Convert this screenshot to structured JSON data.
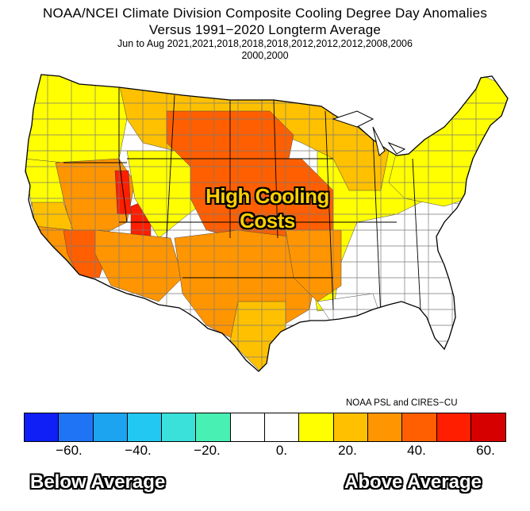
{
  "title": {
    "line1": "NOAA/NCEI Climate Division Composite Cooling Degree Day Anomalies",
    "line2": "Versus 1991−2020 Longterm Average",
    "line3": "Jun to Aug  2021,2021,2018,2018,2018,2012,2012,2012,2008,2006",
    "line4": "2000,2000"
  },
  "overlay": {
    "center_text": "High Cooling Costs"
  },
  "credit": "NOAA PSL and CIRES−CU",
  "legend": {
    "colors": [
      "#0f1ff5",
      "#1e74f5",
      "#1ca4f0",
      "#22c8f2",
      "#3ae0da",
      "#48f0b4",
      "#ffffff",
      "#ffffff",
      "#ffff00",
      "#ffc000",
      "#ff9500",
      "#ff5f00",
      "#ff1e00",
      "#d70000"
    ],
    "tick_labels": [
      "−60.",
      "−40.",
      "−20.",
      "0.",
      "20.",
      "40.",
      "60."
    ],
    "below_label": "Below Average",
    "above_label": "Above Average"
  },
  "map": {
    "regions": [
      {
        "name": "pacific-northwest-coast",
        "color": "#ffff00"
      },
      {
        "name": "northern-california",
        "color": "#ffff00"
      },
      {
        "name": "central-california",
        "color": "#ffc000"
      },
      {
        "name": "southern-california",
        "color": "#ff9500"
      },
      {
        "name": "southwest-desert",
        "color": "#ff5f00"
      },
      {
        "name": "great-basin",
        "color": "#ff9500"
      },
      {
        "name": "northern-rockies",
        "color": "#ffc000"
      },
      {
        "name": "utah-central",
        "color": "#ff1e00"
      },
      {
        "name": "colorado-west",
        "color": "#ffff00"
      },
      {
        "name": "new-mexico-arizona",
        "color": "#ff9500"
      },
      {
        "name": "northern-plains",
        "color": "#ff5f00"
      },
      {
        "name": "central-plains",
        "color": "#ff5f00"
      },
      {
        "name": "southern-plains-texas",
        "color": "#ff9500"
      },
      {
        "name": "upper-midwest",
        "color": "#ffc000"
      },
      {
        "name": "ozarks",
        "color": "#ff9500"
      },
      {
        "name": "midwest",
        "color": "#ffff00"
      },
      {
        "name": "southeast",
        "color": "#ffffff"
      },
      {
        "name": "gulf-coast",
        "color": "#ffffff"
      },
      {
        "name": "northeast",
        "color": "#ffff00"
      },
      {
        "name": "texas-coast",
        "color": "#ffc000"
      }
    ]
  }
}
